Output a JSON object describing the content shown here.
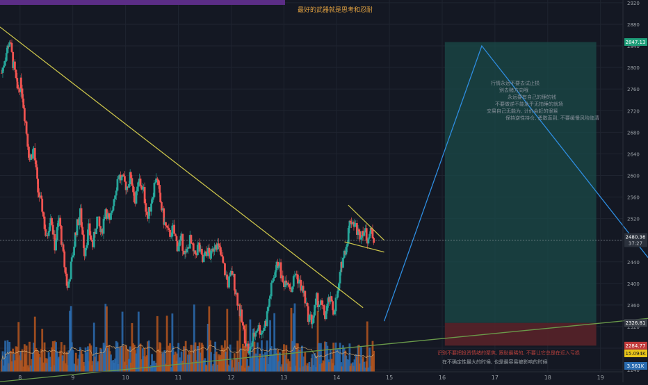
{
  "chart_data": {
    "type": "candlestick",
    "title": "最好的武器就是思考和忍耐",
    "price_axis": {
      "ylim": [
        2217,
        2925
      ],
      "ticks": [
        2240,
        2280,
        2320,
        2360,
        2400,
        2440,
        2480,
        2520,
        2560,
        2600,
        2640,
        2680,
        2720,
        2760,
        2800,
        2840,
        2880,
        2920
      ],
      "grid": true
    },
    "time_axis": {
      "ticks": [
        {
          "label": "8",
          "x": 8
        },
        {
          "label": "9",
          "x": 9
        },
        {
          "label": "10",
          "x": 10
        },
        {
          "label": "11",
          "x": 11
        },
        {
          "label": "12",
          "x": 12
        },
        {
          "label": "13",
          "x": 13
        },
        {
          "label": "14",
          "x": 14
        },
        {
          "label": "15",
          "x": 15
        },
        {
          "label": "16",
          "x": 16
        },
        {
          "label": "17",
          "x": 17
        },
        {
          "label": "18",
          "x": 18
        },
        {
          "label": "19",
          "x": 19
        }
      ],
      "xlim": [
        7.62,
        19.9
      ]
    },
    "price_path": [
      [
        7.65,
        2790
      ],
      [
        7.72,
        2820
      ],
      [
        7.8,
        2850
      ],
      [
        7.88,
        2800
      ],
      [
        7.95,
        2760
      ],
      [
        8.02,
        2770
      ],
      [
        8.1,
        2700
      ],
      [
        8.18,
        2630
      ],
      [
        8.26,
        2650
      ],
      [
        8.34,
        2570
      ],
      [
        8.42,
        2540
      ],
      [
        8.5,
        2480
      ],
      [
        8.58,
        2530
      ],
      [
        8.66,
        2470
      ],
      [
        8.74,
        2520
      ],
      [
        8.82,
        2450
      ],
      [
        8.9,
        2390
      ],
      [
        8.98,
        2440
      ],
      [
        9.06,
        2500
      ],
      [
        9.14,
        2530
      ],
      [
        9.22,
        2460
      ],
      [
        9.3,
        2500
      ],
      [
        9.38,
        2470
      ],
      [
        9.46,
        2520
      ],
      [
        9.54,
        2490
      ],
      [
        9.62,
        2540
      ],
      [
        9.7,
        2510
      ],
      [
        9.78,
        2560
      ],
      [
        9.86,
        2600
      ],
      [
        9.94,
        2590
      ],
      [
        10.02,
        2580
      ],
      [
        10.1,
        2600
      ],
      [
        10.18,
        2550
      ],
      [
        10.26,
        2590
      ],
      [
        10.34,
        2570
      ],
      [
        10.42,
        2520
      ],
      [
        10.5,
        2560
      ],
      [
        10.58,
        2600
      ],
      [
        10.66,
        2550
      ],
      [
        10.74,
        2510
      ],
      [
        10.82,
        2490
      ],
      [
        10.9,
        2500
      ],
      [
        10.98,
        2470
      ],
      [
        11.06,
        2480
      ],
      [
        11.14,
        2450
      ],
      [
        11.22,
        2480
      ],
      [
        11.3,
        2450
      ],
      [
        11.38,
        2470
      ],
      [
        11.46,
        2440
      ],
      [
        11.54,
        2460
      ],
      [
        11.62,
        2450
      ],
      [
        11.7,
        2480
      ],
      [
        11.78,
        2460
      ],
      [
        11.86,
        2430
      ],
      [
        11.94,
        2400
      ],
      [
        12.02,
        2420
      ],
      [
        12.1,
        2380
      ],
      [
        12.18,
        2340
      ],
      [
        12.26,
        2300
      ],
      [
        12.34,
        2270
      ],
      [
        12.42,
        2300
      ],
      [
        12.5,
        2320
      ],
      [
        12.58,
        2310
      ],
      [
        12.66,
        2330
      ],
      [
        12.74,
        2380
      ],
      [
        12.82,
        2420
      ],
      [
        12.9,
        2440
      ],
      [
        12.98,
        2400
      ],
      [
        13.06,
        2410
      ],
      [
        13.14,
        2390
      ],
      [
        13.22,
        2420
      ],
      [
        13.3,
        2400
      ],
      [
        13.38,
        2380
      ],
      [
        13.46,
        2340
      ],
      [
        13.54,
        2330
      ],
      [
        13.62,
        2370
      ],
      [
        13.7,
        2360
      ],
      [
        13.78,
        2340
      ],
      [
        13.86,
        2370
      ],
      [
        13.94,
        2350
      ],
      [
        14.02,
        2380
      ],
      [
        14.1,
        2440
      ],
      [
        14.18,
        2470
      ],
      [
        14.26,
        2520
      ],
      [
        14.34,
        2510
      ],
      [
        14.42,
        2490
      ],
      [
        14.5,
        2500
      ],
      [
        14.58,
        2485
      ],
      [
        14.66,
        2495
      ],
      [
        14.72,
        2480
      ]
    ],
    "current_price": {
      "label": "2480.36",
      "sublabel": "37:27",
      "y": 2480.36
    },
    "target_price": {
      "label": "2847.13",
      "y": 2847.13
    },
    "entry_price": {
      "label": "2326.81",
      "y": 2326.81
    },
    "stop_price": {
      "label": "2284.77",
      "y": 2284.77
    },
    "volume_labels": {
      "ma": "15.094K",
      "volume": "3.561K"
    },
    "trendlines": [
      {
        "name": "downtrend",
        "from": [
          7.62,
          2875
        ],
        "to": [
          14.5,
          2355
        ]
      },
      {
        "name": "pennant-upper",
        "from": [
          14.22,
          2545
        ],
        "to": [
          14.9,
          2480
        ]
      },
      {
        "name": "pennant-lower",
        "from": [
          14.15,
          2477
        ],
        "to": [
          14.9,
          2458
        ]
      },
      {
        "name": "long-uptrend",
        "from": [
          7.62,
          2218
        ],
        "to": [
          19.9,
          2335
        ]
      }
    ],
    "projection": [
      [
        14.9,
        2330
      ],
      [
        16.75,
        2840
      ],
      [
        19.9,
        2448
      ]
    ],
    "position_box": {
      "x_from": 16.05,
      "x_to": 18.92,
      "target": 2847.13,
      "entry": 2326.81,
      "stop": 2284.77
    },
    "annotations": {
      "notes_right": [
        "行情永远不要去试止损",
        "别去赌方向哦",
        "永远要有自己的理的钱",
        "不要做逆不能急乎无拍睡的就场",
        "交易自己无能为, 计价会赶的很紧",
        "保持逆性持仓, 勇敢直到, 不要缓慢风险临清"
      ],
      "footer_red": "识别不要把投资情绪的聚焦, 跟助最稀的, 不要让它总是在近入亏损",
      "footer_white": "在不确定性最大的时候, 也是最容易被影响的时候"
    }
  }
}
